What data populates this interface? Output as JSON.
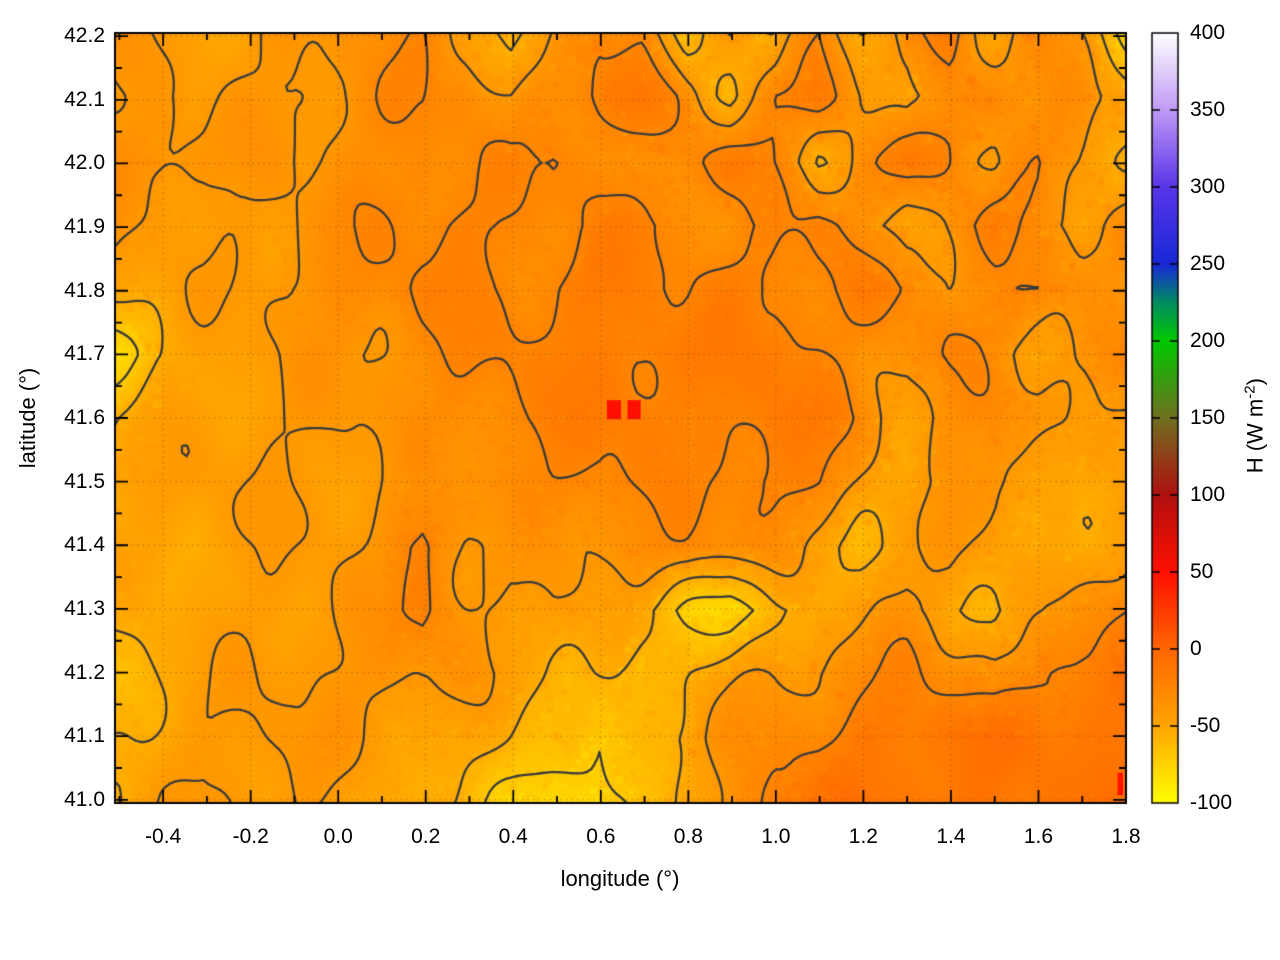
{
  "chart_data": {
    "type": "heatmap",
    "title": "",
    "xlabel": "longitude (°)",
    "ylabel": "latitude (°)",
    "colorbar_label": "H (W m⁻²)",
    "colorbar_label_main": "H (W m",
    "colorbar_label_sup": "-2",
    "colorbar_label_close": ")",
    "x_range": [
      -0.51,
      1.8
    ],
    "y_range": [
      40.995,
      42.205
    ],
    "cb_range": [
      -100,
      400
    ],
    "grid_on": true,
    "legend_position": "right-colorbar",
    "x_ticks": {
      "major": [
        -0.4,
        -0.2,
        0.0,
        0.2,
        0.4,
        0.6,
        0.8,
        1.0,
        1.2,
        1.4,
        1.6,
        1.8
      ],
      "labels": [
        "-0.4",
        "-0.2",
        "0.0",
        "0.2",
        "0.4",
        "0.6",
        "0.8",
        "1.0",
        "1.2",
        "1.4",
        "1.6",
        "1.8"
      ],
      "minor_step": 0.1
    },
    "y_ticks": {
      "major": [
        41.0,
        41.1,
        41.2,
        41.3,
        41.4,
        41.5,
        41.6,
        41.7,
        41.8,
        41.9,
        42.0,
        42.1,
        42.2
      ],
      "labels": [
        "41.0",
        "41.1",
        "41.2",
        "41.3",
        "41.4",
        "41.5",
        "41.6",
        "41.7",
        "41.8",
        "41.9",
        "42.0",
        "42.1",
        "42.2"
      ],
      "minor_step": 0.05
    },
    "cb_ticks": {
      "major": [
        400,
        350,
        300,
        250,
        200,
        150,
        100,
        50,
        0,
        -50,
        -100
      ],
      "labels": [
        "400",
        "350",
        "300",
        "250",
        "200",
        "150",
        "100",
        "50",
        "0",
        "-50",
        "-100"
      ]
    },
    "palette": [
      [
        -100,
        "#ffff00"
      ],
      [
        -50,
        "#ffa500"
      ],
      [
        0,
        "#ff6600"
      ],
      [
        50,
        "#ff0f00"
      ],
      [
        100,
        "#b01010"
      ],
      [
        150,
        "#6f7020"
      ],
      [
        200,
        "#00c800"
      ],
      [
        225,
        "#008c60"
      ],
      [
        250,
        "#1828d8"
      ],
      [
        300,
        "#5a35e8"
      ],
      [
        350,
        "#bf9af5"
      ],
      [
        400,
        "#ffffff"
      ]
    ],
    "contour_levels": [
      -70,
      -55,
      -40,
      -25
    ],
    "contour_color": "#3c3c3c",
    "grid_color": "rgba(105,75,30,0.5)",
    "border_color": "#000000",
    "grid_lon": [
      -0.5,
      -0.4,
      -0.3,
      -0.2,
      -0.1,
      0.0,
      0.1,
      0.2,
      0.3,
      0.4,
      0.5,
      0.6,
      0.7,
      0.8,
      0.9,
      1.0,
      1.1,
      1.2,
      1.3,
      1.4,
      1.5,
      1.6,
      1.7,
      1.8
    ],
    "grid_lat": [
      42.2,
      42.1,
      42.0,
      41.9,
      41.8,
      41.7,
      41.6,
      41.5,
      41.4,
      41.3,
      41.2,
      41.1,
      41.0
    ],
    "values": [
      [
        -42,
        -44,
        -45,
        -43,
        -40,
        -38,
        -34,
        -28,
        -38,
        -60,
        -45,
        -25,
        -30,
        -65,
        -35,
        -58,
        -30,
        -55,
        -28,
        -20,
        -50,
        -30,
        -45,
        -70
      ],
      [
        -41,
        -41,
        -42,
        -40,
        -38,
        -35,
        -30,
        -26,
        -30,
        -40,
        -28,
        -20,
        -16,
        -35,
        -55,
        -25,
        -15,
        -38,
        -55,
        -28,
        -20,
        -38,
        -30,
        -48
      ],
      [
        -34,
        -30,
        -36,
        -40,
        -39,
        -36,
        -31,
        -26,
        -30,
        -28,
        -23,
        -27,
        -38,
        -26,
        -18,
        -30,
        -52,
        -30,
        -16,
        -26,
        -45,
        -26,
        -36,
        -55
      ],
      [
        -38,
        -42,
        -45,
        -42,
        -38,
        -33,
        -28,
        -25,
        -22,
        -26,
        -30,
        -25,
        -20,
        -28,
        -36,
        -25,
        -20,
        -36,
        -50,
        -30,
        -20,
        -36,
        -46,
        -30
      ],
      [
        -45,
        -47,
        -45,
        -41,
        -36,
        -31,
        -28,
        -23,
        -25,
        -28,
        -22,
        -18,
        -22,
        -26,
        -20,
        -22,
        -28,
        -20,
        -26,
        -40,
        -30,
        -20,
        -32,
        -45
      ],
      [
        -78,
        -55,
        -46,
        -43,
        -41,
        -38,
        -35,
        -30,
        -25,
        -22,
        -25,
        -20,
        -16,
        -18,
        -20,
        -18,
        -25,
        -35,
        -30,
        -25,
        -35,
        -46,
        -36,
        -26
      ],
      [
        -56,
        -48,
        -45,
        -43,
        -41,
        -40,
        -38,
        -35,
        -30,
        -25,
        -22,
        -18,
        -20,
        -25,
        -20,
        -15,
        -20,
        -30,
        -46,
        -35,
        -26,
        -36,
        -50,
        -40
      ],
      [
        -46,
        -45,
        -43,
        -42,
        -42,
        -41,
        -40,
        -38,
        -35,
        -30,
        -26,
        -22,
        -25,
        -28,
        -25,
        -20,
        -25,
        -40,
        -55,
        -40,
        -30,
        -46,
        -55,
        -45
      ],
      [
        -50,
        -48,
        -46,
        -45,
        -43,
        -42,
        -40,
        -18,
        -38,
        -41,
        -38,
        -35,
        -30,
        -26,
        -30,
        -36,
        -46,
        -56,
        -46,
        -36,
        -46,
        -56,
        -50,
        -40
      ],
      [
        -56,
        -51,
        -48,
        -45,
        -42,
        -40,
        -38,
        -20,
        -36,
        -46,
        -40,
        -46,
        -56,
        -70,
        -78,
        -62,
        -50,
        -46,
        -36,
        -46,
        -56,
        -46,
        -34,
        -24
      ],
      [
        -62,
        -51,
        -46,
        -42,
        -40,
        -38,
        -36,
        -36,
        -40,
        -46,
        -51,
        -56,
        -62,
        -56,
        -46,
        -40,
        -35,
        -30,
        -25,
        -30,
        -36,
        -25,
        -16,
        -13
      ],
      [
        -56,
        -48,
        -43,
        -40,
        -38,
        -40,
        -42,
        -46,
        -51,
        -56,
        -65,
        -72,
        -56,
        -46,
        -36,
        -30,
        -28,
        -18,
        -13,
        -13,
        -13,
        -13,
        -13,
        -13
      ],
      [
        -51,
        -46,
        -40,
        -38,
        -40,
        -46,
        -51,
        -56,
        -62,
        -70,
        -78,
        -85,
        -62,
        -55,
        -35,
        -16,
        -13,
        -13,
        -13,
        -13,
        -13,
        -13,
        -13,
        -13
      ]
    ],
    "hot_spots": [
      {
        "lon": 0.63,
        "lat": 41.613,
        "w": 0.032,
        "h": 0.03,
        "value": 50
      },
      {
        "lon": 0.676,
        "lat": 41.613,
        "w": 0.03,
        "h": 0.03,
        "value": 50
      },
      {
        "lon": 1.787,
        "lat": 41.025,
        "w": 0.012,
        "h": 0.035,
        "value": 50
      }
    ]
  }
}
